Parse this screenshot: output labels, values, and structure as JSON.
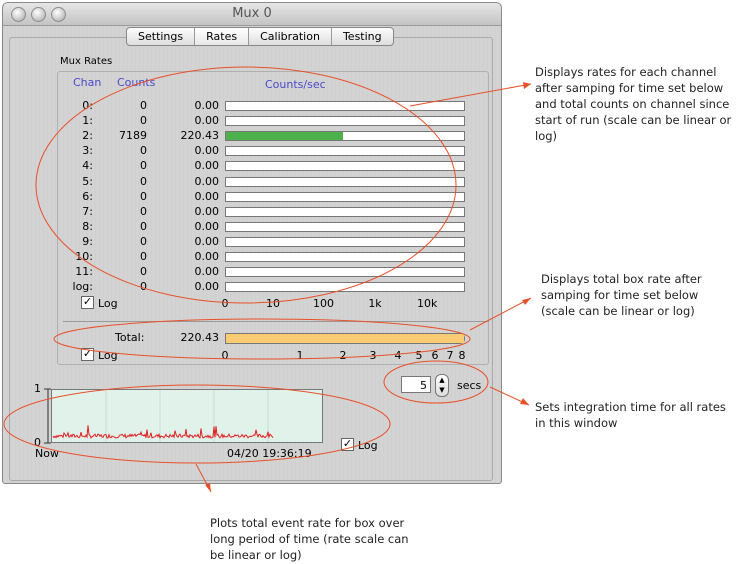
{
  "window": {
    "title": "Mux 0"
  },
  "tabs": [
    {
      "label": "Settings"
    },
    {
      "label": "Rates"
    },
    {
      "label": "Calibration"
    },
    {
      "label": "Testing"
    }
  ],
  "mux_rates": {
    "section_label": "Mux Rates",
    "col_chan": "Chan",
    "col_counts": "Counts",
    "col_rate": "Counts/sec",
    "rows": [
      {
        "chan": "0:",
        "counts": "0",
        "rate": "0.00",
        "fraction": 0
      },
      {
        "chan": "1:",
        "counts": "0",
        "rate": "0.00",
        "fraction": 0
      },
      {
        "chan": "2:",
        "counts": "7189",
        "rate": "220.43",
        "fraction": 0.49
      },
      {
        "chan": "3:",
        "counts": "0",
        "rate": "0.00",
        "fraction": 0
      },
      {
        "chan": "4:",
        "counts": "0",
        "rate": "0.00",
        "fraction": 0
      },
      {
        "chan": "5:",
        "counts": "0",
        "rate": "0.00",
        "fraction": 0
      },
      {
        "chan": "6:",
        "counts": "0",
        "rate": "0.00",
        "fraction": 0
      },
      {
        "chan": "7:",
        "counts": "0",
        "rate": "0.00",
        "fraction": 0
      },
      {
        "chan": "8:",
        "counts": "0",
        "rate": "0.00",
        "fraction": 0
      },
      {
        "chan": "9:",
        "counts": "0",
        "rate": "0.00",
        "fraction": 0
      },
      {
        "chan": "10:",
        "counts": "0",
        "rate": "0.00",
        "fraction": 0
      },
      {
        "chan": "11:",
        "counts": "0",
        "rate": "0.00",
        "fraction": 0
      },
      {
        "chan": "log:",
        "counts": "0",
        "rate": "0.00",
        "fraction": 0
      }
    ],
    "log_label": "Log",
    "log_checked": true,
    "scale_ticks": [
      "0",
      "10",
      "100",
      "1k",
      "10k"
    ]
  },
  "total": {
    "label": "Total:",
    "rate": "220.43",
    "fraction": 1.0,
    "log_label": "Log",
    "log_checked": true,
    "scale_ticks": [
      "0",
      "1",
      "2",
      "3",
      "4",
      "5",
      "6",
      "7",
      "8"
    ]
  },
  "integration": {
    "value": "5",
    "unit": "secs"
  },
  "history": {
    "y_top": "1",
    "y_bottom": "0",
    "x_left": "Now",
    "x_right": "04/20 19:36:19",
    "log_label": "Log",
    "log_checked": true
  },
  "annotations": {
    "rates": "Displays rates for each channel after samping for time set below and total counts on channel since start of run (scale can be linear or log)",
    "total": "Displays total box rate after samping for time set below (scale can be linear or log)",
    "integration": "Sets integration time for all rates in this window",
    "history": "Plots total event rate for box over long period of time (rate scale can be linear or log)"
  },
  "colors": {
    "channel_bar": "#4cb04c",
    "total_bar": "#f9cc73",
    "annotation_line": "#e8502a",
    "header_text": "#4a4acb"
  }
}
